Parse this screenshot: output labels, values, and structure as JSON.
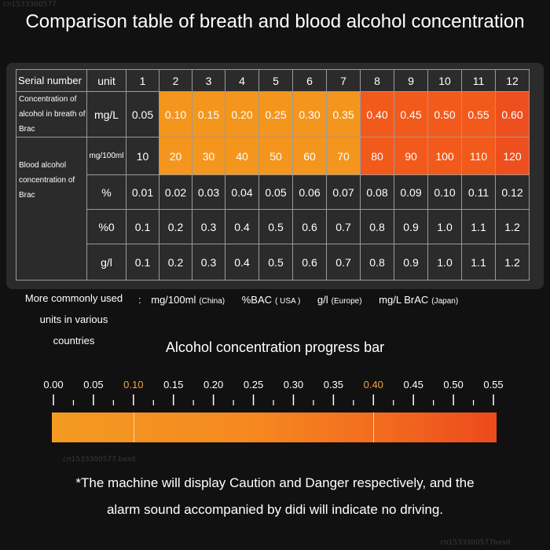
{
  "title": "Comparison table of breath and blood alcohol concentration",
  "watermarks": [
    "cn1533300577",
    "cn1533300577.bxsd",
    "cn1533300577bxsd"
  ],
  "table": {
    "serial_header": "Serial number",
    "unit_header": "unit",
    "serials": [
      "1",
      "2",
      "3",
      "4",
      "5",
      "6",
      "7",
      "8",
      "9",
      "10",
      "11",
      "12"
    ],
    "breath_label": "Concentration of alcohol in breath of Brac",
    "blood_label": "Blood alcohol concentration of Brac",
    "rows": [
      {
        "unit": "mg/L",
        "values": [
          "0.05",
          "0.10",
          "0.15",
          "0.20",
          "0.25",
          "0.30",
          "0.35",
          "0.40",
          "0.45",
          "0.50",
          "0.55",
          "0.60"
        ]
      },
      {
        "unit": "mg/100ml",
        "values": [
          "10",
          "20",
          "30",
          "40",
          "50",
          "60",
          "70",
          "80",
          "90",
          "100",
          "110",
          "120"
        ]
      },
      {
        "unit": "%",
        "values": [
          "0.01",
          "0.02",
          "0.03",
          "0.04",
          "0.05",
          "0.06",
          "0.07",
          "0.08",
          "0.09",
          "0.10",
          "0.11",
          "0.12"
        ]
      },
      {
        "unit": "%0",
        "values": [
          "0.1",
          "0.2",
          "0.3",
          "0.4",
          "0.5",
          "0.6",
          "0.7",
          "0.8",
          "0.9",
          "1.0",
          "1.1",
          "1.2"
        ]
      },
      {
        "unit": "g/l",
        "values": [
          "0.1",
          "0.2",
          "0.3",
          "0.4",
          "0.5",
          "0.6",
          "0.7",
          "0.8",
          "0.9",
          "1.0",
          "1.1",
          "1.2"
        ]
      }
    ],
    "colors": {
      "caution": "#f4961d",
      "danger": "#f25a1c"
    }
  },
  "units": {
    "label": "More commonly used units in various countries",
    "colon": ":",
    "china": "mg/100ml",
    "china_country": "(China)",
    "usa": "%BAC",
    "usa_country": "( USA )",
    "europe": "g/l",
    "europe_country": "(Europe)",
    "japan": "mg/L BrAC",
    "japan_country": "(Japan)"
  },
  "progress": {
    "title": "Alcohol concentration progress bar",
    "ticks": [
      "0.00",
      "0.05",
      "0.10",
      "0.15",
      "0.20",
      "0.25",
      "0.30",
      "0.35",
      "0.40",
      "0.45",
      "0.50",
      "0.55"
    ],
    "highlight_ticks": [
      "0.10",
      "0.40"
    ],
    "highlight_color": "#f4a33a",
    "dividers": [
      0.1,
      0.4
    ]
  },
  "note": {
    "line1": "*The machine will display Caution and Danger respectively, and the",
    "line2": "alarm sound accompanied by didi will indicate no driving."
  }
}
